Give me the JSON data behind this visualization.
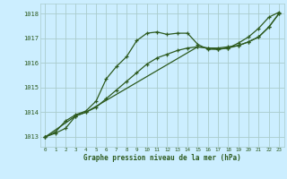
{
  "bg_color": "#cceeff",
  "grid_color": "#aacccc",
  "line_color": "#2d5a1e",
  "xlabel": "Graphe pression niveau de la mer (hPa)",
  "xlabel_color": "#2d5a1e",
  "ylim": [
    1012.6,
    1018.4
  ],
  "yticks": [
    1013,
    1014,
    1015,
    1016,
    1017,
    1018
  ],
  "xticks": [
    0,
    1,
    2,
    3,
    4,
    5,
    6,
    7,
    8,
    9,
    10,
    11,
    12,
    13,
    14,
    15,
    16,
    17,
    18,
    19,
    20,
    21,
    22,
    23
  ],
  "series1_x": [
    0,
    1,
    2,
    3,
    4,
    5,
    6,
    7,
    8,
    9,
    10,
    11,
    12,
    13,
    14,
    15,
    16,
    17,
    18,
    19,
    20,
    21,
    22,
    23
  ],
  "series1_y": [
    1013.0,
    1013.2,
    1013.65,
    1013.9,
    1014.05,
    1014.45,
    1015.35,
    1015.85,
    1016.25,
    1016.9,
    1017.2,
    1017.25,
    1017.15,
    1017.2,
    1017.2,
    1016.75,
    1016.55,
    1016.55,
    1016.6,
    1016.8,
    1017.05,
    1017.4,
    1017.85,
    1018.05
  ],
  "series2_x": [
    0,
    1,
    2,
    3,
    4,
    5,
    6,
    7,
    8,
    9,
    10,
    11,
    12,
    13,
    14,
    15,
    16,
    17,
    18,
    19,
    20,
    21,
    22,
    23
  ],
  "series2_y": [
    1013.0,
    1013.15,
    1013.35,
    1013.85,
    1014.0,
    1014.2,
    1014.55,
    1014.9,
    1015.25,
    1015.6,
    1015.95,
    1016.2,
    1016.35,
    1016.5,
    1016.6,
    1016.65,
    1016.6,
    1016.6,
    1016.65,
    1016.7,
    1016.85,
    1017.05,
    1017.45,
    1018.0
  ],
  "series3_x": [
    0,
    3,
    4,
    15,
    16,
    17,
    18,
    19,
    20,
    21,
    22,
    23
  ],
  "series3_y": [
    1013.0,
    1013.85,
    1014.0,
    1016.65,
    1016.6,
    1016.55,
    1016.6,
    1016.7,
    1016.85,
    1017.05,
    1017.45,
    1018.0
  ]
}
